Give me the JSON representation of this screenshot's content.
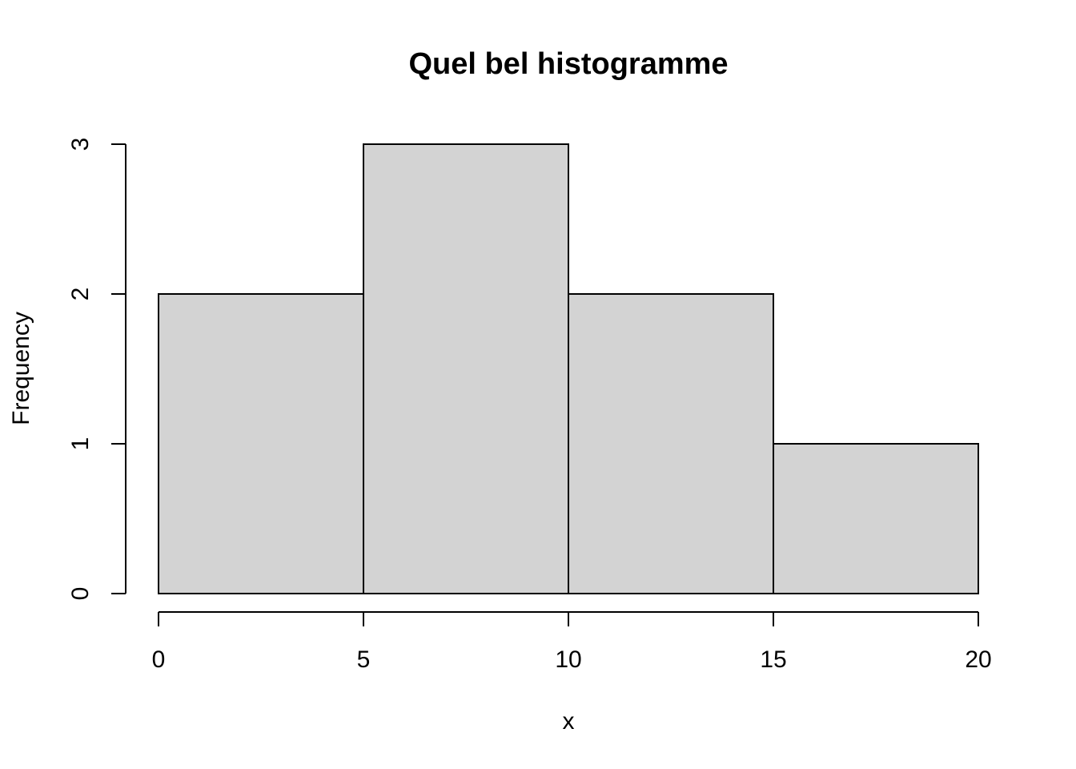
{
  "chart_data": {
    "type": "bar",
    "title": "Quel bel histogramme",
    "xlabel": "x",
    "ylabel": "Frequency",
    "bins": [
      {
        "start": 0,
        "end": 5,
        "count": 2
      },
      {
        "start": 5,
        "end": 10,
        "count": 3
      },
      {
        "start": 10,
        "end": 15,
        "count": 2
      },
      {
        "start": 15,
        "end": 20,
        "count": 1
      }
    ],
    "xlim": [
      0,
      20
    ],
    "ylim": [
      0,
      3
    ],
    "x_ticks": [
      0,
      5,
      10,
      15,
      20
    ],
    "y_ticks": [
      0,
      1,
      2,
      3
    ],
    "grid": false,
    "legend": "none",
    "bar_fill": "#d3d3d3",
    "bar_stroke": "#000000"
  }
}
